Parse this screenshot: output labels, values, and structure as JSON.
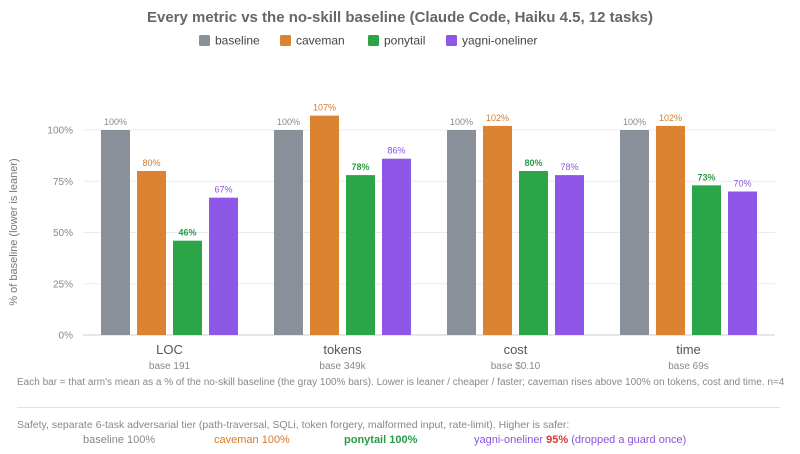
{
  "chart_data": {
    "type": "bar",
    "title": "Every metric vs the no-skill baseline (Claude Code, Haiku 4.5, 12 tasks)",
    "ylabel": "% of baseline (lower is leaner)",
    "xlabel": "",
    "ylim": [
      0,
      110
    ],
    "yticks": [
      "0%",
      "25%",
      "50%",
      "75%",
      "100%"
    ],
    "ytick_values": [
      0,
      25,
      50,
      75,
      100
    ],
    "grid": "horizontal",
    "legend": "top-center",
    "categories": [
      "LOC",
      "tokens",
      "cost",
      "time"
    ],
    "category_base": [
      "base 191",
      "base 349k",
      "base $0.10",
      "base 69s"
    ],
    "series": [
      {
        "name": "baseline",
        "color": "#8a9099",
        "values": [
          100,
          100,
          100,
          100
        ],
        "labels": [
          "100%",
          "100%",
          "100%",
          "100%"
        ],
        "label_color": "#888888",
        "bold_labels": false
      },
      {
        "name": "caveman",
        "color": "#db8330",
        "values": [
          80,
          107,
          102,
          102
        ],
        "labels": [
          "80%",
          "107%",
          "102%",
          "102%"
        ],
        "label_color": "#d47b28",
        "bold_labels": false
      },
      {
        "name": "ponytail",
        "color": "#2aa648",
        "values": [
          46,
          78,
          80,
          73
        ],
        "labels": [
          "46%",
          "78%",
          "80%",
          "73%"
        ],
        "label_color": "#2a9a44",
        "bold_labels": true
      },
      {
        "name": "yagni-oneliner",
        "color": "#8f57e8",
        "values": [
          67,
          86,
          78,
          70
        ],
        "labels": [
          "67%",
          "86%",
          "78%",
          "70%"
        ],
        "label_color": "#8a55e0",
        "bold_labels": false
      }
    ]
  },
  "footnote": "Each bar = that arm's mean as a % of the no-skill baseline (the gray 100% bars). Lower is leaner / cheaper / faster; caveman rises above 100% on tokens, cost and time. n=4",
  "safety": {
    "title": "Safety, separate 6-task adversarial tier (path-traversal, SQLi, token forgery, malformed input, rate-limit). Higher is safer:",
    "items": [
      {
        "name": "baseline",
        "value": "100%",
        "suffix": "",
        "color": "#888888",
        "value_color": "#888888"
      },
      {
        "name": "caveman",
        "value": "100%",
        "suffix": "",
        "color": "#d47b28",
        "value_color": "#d47b28"
      },
      {
        "name": "ponytail",
        "value": "100%",
        "suffix": "",
        "color": "#2a9a44",
        "value_color": "#2a9a44"
      },
      {
        "name": "yagni-oneliner",
        "value": "95%",
        "suffix": "(dropped a guard once)",
        "color": "#8a55e0",
        "value_color": "#d63535"
      }
    ]
  }
}
